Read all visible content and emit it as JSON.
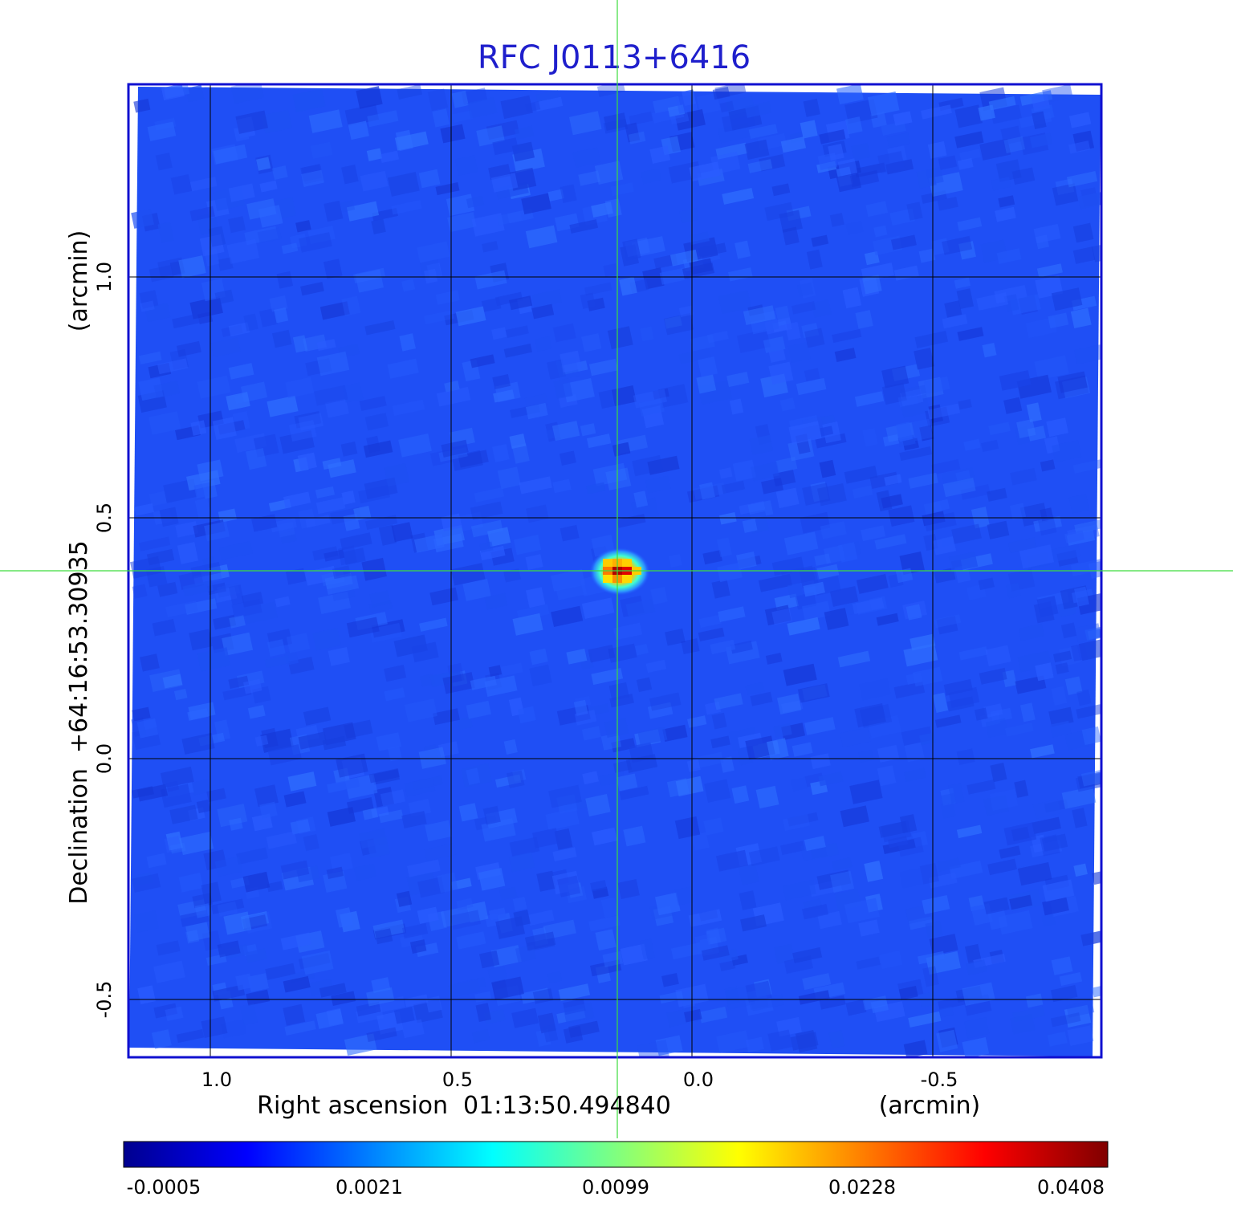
{
  "chart_data": {
    "type": "heatmap",
    "title": "RFC J0113+6416",
    "xlabel": "Right ascension  01:13:50.494840",
    "xunit": "(arcmin)",
    "ylabel": "Declination  +64:16:53.30935",
    "yunit": "(arcmin)",
    "xlim": [
      1.17,
      -0.85
    ],
    "ylim": [
      -0.62,
      1.4
    ],
    "xticks": [
      1.0,
      0.5,
      0.0,
      -0.5
    ],
    "xtick_labels": [
      "1.0",
      "0.5",
      "0.0",
      "-0.5"
    ],
    "yticks": [
      1.0,
      0.5,
      0.0,
      -0.5
    ],
    "ytick_labels": [
      "1.0",
      "0.5",
      "0.0",
      "-0.5"
    ],
    "grid": true,
    "crosshair": {
      "x": 0.155,
      "y": 0.39
    },
    "source_peak": {
      "x": 0.155,
      "y": 0.39,
      "value": 0.0408
    },
    "colorbar": {
      "colormap": "jet",
      "ticks": [
        -0.0005,
        0.0021,
        0.0099,
        0.0228,
        0.0408
      ],
      "tick_labels": [
        "-0.0005",
        "0.0021",
        "0.0099",
        "0.0228",
        "0.0408"
      ]
    },
    "colors": {
      "title": "#1f1fcc",
      "frame": "#1010d0",
      "crosshair": "#3ddc3d",
      "grid": "#000000",
      "background": "#1f4ff5"
    }
  }
}
